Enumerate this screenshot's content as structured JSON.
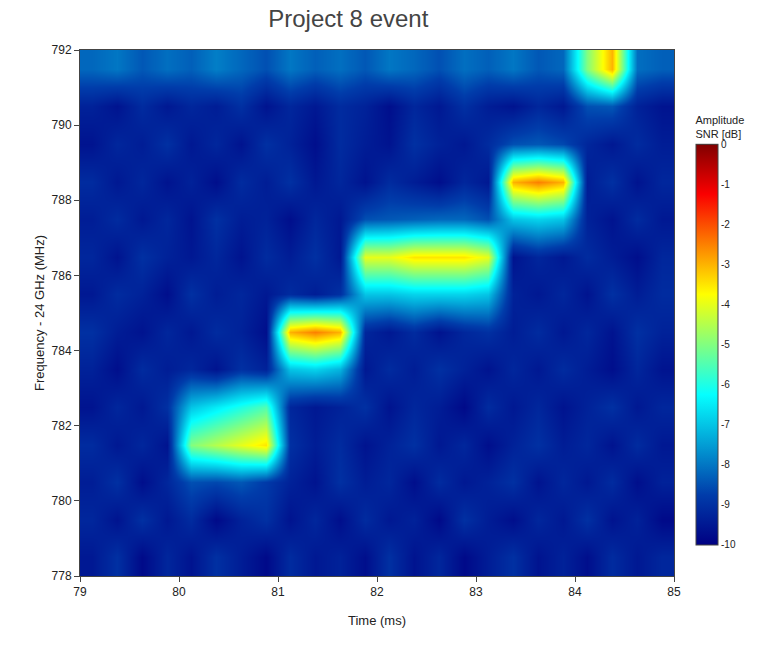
{
  "chart_data": {
    "type": "heatmap",
    "title": "Project 8 event",
    "x_label": "Time (ms)",
    "y_label": "Frequency - 24 GHz (MHz)",
    "colorbar_title": "Amplitude SNR [dB]",
    "color": "Jet",
    "xlim": [
      79,
      85
    ],
    "xticks": [
      79,
      80,
      81,
      82,
      83,
      84,
      85
    ],
    "ylim": [
      778,
      792
    ],
    "yticks": [
      778,
      780,
      782,
      784,
      786,
      788,
      790,
      792
    ],
    "zlim": [
      -10,
      0
    ],
    "zticks": [
      0,
      -1,
      -2,
      -3,
      -4,
      -5,
      -6,
      -7,
      -8,
      -9,
      -10
    ],
    "x": [
      79.125,
      79.375,
      79.625,
      79.875,
      80.125,
      80.375,
      80.625,
      80.875,
      81.125,
      81.375,
      81.625,
      81.875,
      82.125,
      82.375,
      82.625,
      82.875,
      83.125,
      83.375,
      83.625,
      83.875,
      84.125,
      84.375,
      84.625,
      84.875
    ],
    "y": [
      778.5,
      779.5,
      780.5,
      781.5,
      782.5,
      783.5,
      784.5,
      785.5,
      786.5,
      787.5,
      788.5,
      789.5,
      790.5,
      791.5
    ],
    "z": [
      [
        -9.5,
        -9,
        -9.8,
        -9.2,
        -9.6,
        -9,
        -9.4,
        -9.8,
        -9.1,
        -9.5,
        -9.3,
        -9.7,
        -9,
        -9.6,
        -9.2,
        -9.8,
        -9.4,
        -9,
        -9.6,
        -9.3,
        -9.7,
        -9.1,
        -9.5,
        -9.2
      ],
      [
        -9.2,
        -9.6,
        -9,
        -9.5,
        -9.1,
        -9.8,
        -9.3,
        -9,
        -9.6,
        -9.2,
        -9.7,
        -9.1,
        -9.5,
        -9.3,
        -9.8,
        -9,
        -9.4,
        -9.7,
        -9.2,
        -9.5,
        -9,
        -9.6,
        -9.3,
        -9.8
      ],
      [
        -9.4,
        -9,
        -9.7,
        -9.2,
        -8.5,
        -8.6,
        -8.4,
        -8.8,
        -9.3,
        -9.6,
        -9,
        -9.4,
        -9.2,
        -9.7,
        -9.1,
        -9.5,
        -9.3,
        -9,
        -9.6,
        -9.2,
        -9.5,
        -9.1,
        -9.7,
        -9.3
      ],
      [
        -9.1,
        -9.5,
        -9.2,
        -9.6,
        -5,
        -4.5,
        -4,
        -3.5,
        -9,
        -9.4,
        -9.1,
        -9.6,
        -9.3,
        -9,
        -9.5,
        -9.2,
        -9.7,
        -9.3,
        -9,
        -9.4,
        -9.2,
        -9.6,
        -9.1,
        -9.5
      ],
      [
        -9.6,
        -9.2,
        -9.5,
        -9,
        -7,
        -6.5,
        -6,
        -5.5,
        -9.2,
        -9.5,
        -9.3,
        -9,
        -9.6,
        -9.2,
        -9.4,
        -9.8,
        -9.1,
        -9.5,
        -9.2,
        -9.6,
        -9.3,
        -9,
        -9.5,
        -9.2
      ],
      [
        -9.3,
        -9.7,
        -9.1,
        -9.4,
        -9.2,
        -9.6,
        -9,
        -9.3,
        -7,
        -6.8,
        -7.2,
        -9.5,
        -9.1,
        -9.4,
        -9,
        -9.3,
        -9.6,
        -9.2,
        -9.5,
        -9.1,
        -9.4,
        -9.7,
        -9.2,
        -9.6
      ],
      [
        -9,
        -9.4,
        -9.6,
        -9.2,
        -9.5,
        -9.1,
        -9.3,
        -9.7,
        -3,
        -2.5,
        -3,
        -9.2,
        -9.5,
        -9.1,
        -9.6,
        -9.2,
        -9,
        -9.4,
        -9.1,
        -9.5,
        -9.2,
        -9.6,
        -9,
        -9.3
      ],
      [
        -9.5,
        -9.1,
        -9.3,
        -9.7,
        -9,
        -9.4,
        -9.2,
        -9.5,
        -9.1,
        -9.4,
        -9,
        -7,
        -7,
        -6.8,
        -6.8,
        -6.8,
        -7,
        -9.3,
        -9.5,
        -9.2,
        -9.6,
        -9,
        -9.4,
        -9.1
      ],
      [
        -9.2,
        -9.6,
        -9,
        -9.3,
        -9.5,
        -9.2,
        -9.6,
        -9.1,
        -9.4,
        -9,
        -9.5,
        -4,
        -4,
        -3.5,
        -3.5,
        -3.5,
        -4,
        -9.6,
        -9.2,
        -9.5,
        -9.1,
        -9.4,
        -9.7,
        -9.2
      ],
      [
        -9.4,
        -9.1,
        -9.5,
        -9.2,
        -9.6,
        -9,
        -9.4,
        -9.3,
        -9.7,
        -9.2,
        -9.5,
        -8.5,
        -8.4,
        -8.3,
        -8.2,
        -8.2,
        -8.5,
        -7,
        -6.8,
        -7,
        -9.3,
        -9.6,
        -9.1,
        -9.5
      ],
      [
        -9.1,
        -9.5,
        -9.2,
        -9.6,
        -9.3,
        -9.7,
        -9.1,
        -9.4,
        -9,
        -9.5,
        -9.2,
        -9.6,
        -9.1,
        -9.4,
        -9.7,
        -9.2,
        -9.5,
        -3,
        -2.5,
        -3,
        -9.4,
        -9,
        -9.6,
        -9.2
      ],
      [
        -9.6,
        -9.2,
        -9.4,
        -9,
        -9.5,
        -9.2,
        -9.6,
        -9,
        -9.3,
        -9.7,
        -9.1,
        -9.4,
        -9.6,
        -9,
        -9.3,
        -9.5,
        -9.1,
        -8.5,
        -8.4,
        -8.6,
        -9.2,
        -9.5,
        -9.1,
        -9.4
      ],
      [
        -9.3,
        -9.6,
        -9.1,
        -9.5,
        -9.2,
        -9.4,
        -9,
        -9.6,
        -9.2,
        -9.5,
        -9.1,
        -9.3,
        -9.7,
        -9.2,
        -9.5,
        -9,
        -9.4,
        -9.6,
        -9.2,
        -9.5,
        -8.5,
        -8.4,
        -9.3,
        -9.6
      ],
      [
        -8.2,
        -8,
        -8.4,
        -8.1,
        -8.3,
        -7.9,
        -8.2,
        -8.5,
        -8,
        -8.3,
        -8.1,
        -8.4,
        -8,
        -8.2,
        -8.5,
        -8.1,
        -8.3,
        -8,
        -8.4,
        -8.2,
        -5,
        -3,
        -8.1,
        -8.3
      ]
    ]
  }
}
